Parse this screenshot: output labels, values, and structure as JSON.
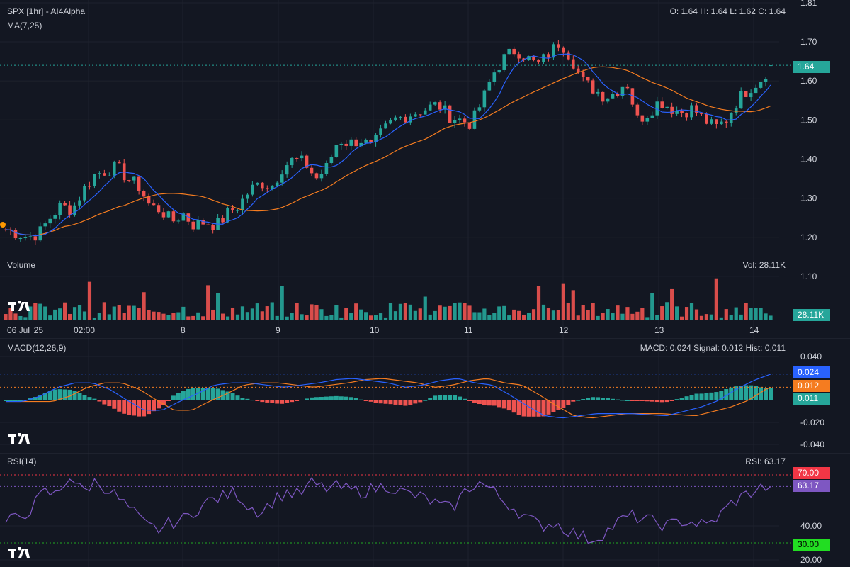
{
  "header": {
    "symbol_title": "SPX [1hr] - AI4Alpha",
    "ma_label": "MA(7,25)",
    "ohlc": "O: 1.64 H: 1.64 L: 1.62 C: 1.64"
  },
  "volume": {
    "label": "Volume",
    "value_label": "Vol: 28.11K",
    "last_tag": "28.11K"
  },
  "macd": {
    "label": "MACD(12,26,9)",
    "value_label": "MACD: 0.024 Signal: 0.012 Hist: 0.011",
    "tag_macd": "0.024",
    "tag_signal": "0.012",
    "tag_hist": "0.011"
  },
  "rsi": {
    "label": "RSI(14)",
    "value_label": "RSI: 63.17",
    "tag_70": "70.00",
    "tag_value": "63.17",
    "tag_30": "30.00"
  },
  "price_tag": "1.64",
  "colors": {
    "background": "#131722",
    "up": "#26a69a",
    "down": "#ef5350",
    "ma7": "#2962ff",
    "ma25": "#f57c20",
    "macd_line": "#2962ff",
    "signal_line": "#f57c20",
    "rsi_line": "#7e57c2",
    "rsi_upper": "#f23645",
    "rsi_lower": "#22ab22",
    "price_line": "#26a69a"
  },
  "chart_data": [
    {
      "type": "candlestick",
      "title": "SPX [1hr] - AI4Alpha",
      "indicators": [
        "MA(7,25)"
      ],
      "y_ticks": [
        "1.81",
        "1.70",
        "1.60",
        "1.50",
        "1.40",
        "1.30",
        "1.20",
        "1.10"
      ],
      "y_range": [
        1.08,
        1.81
      ],
      "x_ticks": [
        "06 Jul '25",
        "02:00",
        "8",
        "9",
        "10",
        "11",
        "12",
        "13",
        "14"
      ],
      "last": {
        "open": 1.64,
        "high": 1.64,
        "low": 1.62,
        "close": 1.64
      },
      "close_path": [
        1.22,
        1.21,
        1.2,
        1.21,
        1.25,
        1.28,
        1.27,
        1.32,
        1.36,
        1.37,
        1.38,
        1.35,
        1.33,
        1.28,
        1.27,
        1.24,
        1.26,
        1.23,
        1.24,
        1.23,
        1.26,
        1.28,
        1.32,
        1.34,
        1.33,
        1.38,
        1.4,
        1.39,
        1.35,
        1.38,
        1.45,
        1.44,
        1.45,
        1.43,
        1.47,
        1.5,
        1.51,
        1.52,
        1.53,
        1.54,
        1.51,
        1.5,
        1.49,
        1.55,
        1.62,
        1.66,
        1.68,
        1.66,
        1.64,
        1.67,
        1.7,
        1.66,
        1.6,
        1.58,
        1.56,
        1.57,
        1.6,
        1.5,
        1.52,
        1.55,
        1.53,
        1.52,
        1.53,
        1.5,
        1.48,
        1.5,
        1.55,
        1.58,
        1.6,
        1.64
      ]
    },
    {
      "type": "bar",
      "title": "Volume",
      "last_value": "28.11K"
    },
    {
      "type": "line",
      "title": "MACD(12,26,9)",
      "y_ticks": [
        "0.040",
        "-0.020",
        "-0.040"
      ],
      "y_range": [
        -0.045,
        0.045
      ],
      "macd": 0.024,
      "signal": 0.012,
      "hist": 0.011,
      "macd_path": [
        -0.001,
        -0.001,
        0.004,
        0.012,
        0.016,
        0.016,
        0.01,
        0.0,
        -0.009,
        -0.009,
        -0.001,
        0.006,
        0.014,
        0.016,
        0.016,
        0.014,
        0.012,
        0.014,
        0.016,
        0.019,
        0.02,
        0.018,
        0.016,
        0.012,
        0.014,
        0.018,
        0.02,
        0.016,
        0.014,
        0.005,
        -0.005,
        -0.014,
        -0.016,
        -0.014,
        -0.012,
        -0.012,
        -0.012,
        -0.013,
        -0.014,
        -0.01,
        -0.006,
        0.0,
        0.01,
        0.018,
        0.024
      ]
    },
    {
      "type": "line",
      "title": "RSI(14)",
      "y_ticks": [
        "40.00",
        "20.00"
      ],
      "y_range": [
        20,
        85
      ],
      "levels": [
        70,
        30
      ],
      "value": 63.17,
      "rsi_path": [
        42,
        45,
        50,
        60,
        58,
        70,
        60,
        66,
        62,
        55,
        48,
        40,
        38,
        42,
        44,
        50,
        55,
        57,
        60,
        52,
        48,
        55,
        60,
        58,
        65,
        62,
        63,
        61,
        60,
        62,
        64,
        60,
        58,
        56,
        52,
        50,
        60,
        66,
        62,
        55,
        50,
        44,
        40,
        42,
        38,
        34,
        32,
        36,
        42,
        46,
        44,
        42,
        40,
        43,
        42,
        40,
        46,
        54,
        58,
        62,
        63
      ]
    }
  ]
}
